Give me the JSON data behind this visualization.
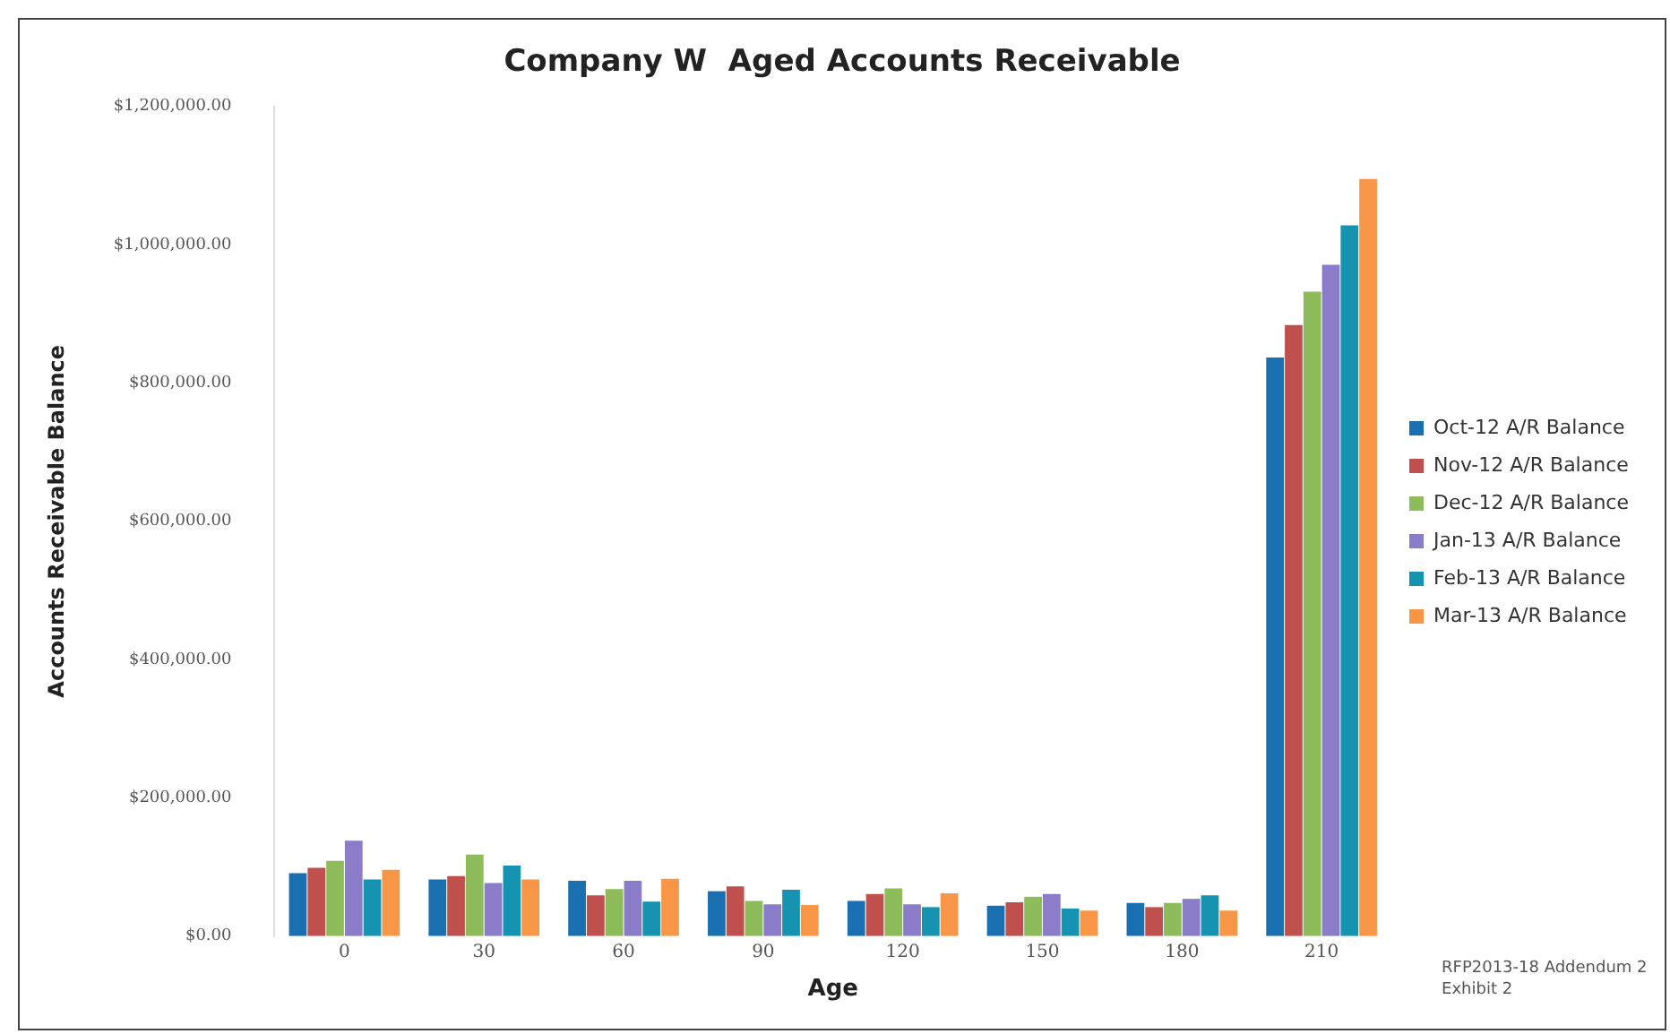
{
  "chart_data": {
    "type": "bar",
    "title": "Company W  Aged Accounts Receivable",
    "xlabel": "Age",
    "ylabel": "Accounts Receivable Balance",
    "categories": [
      "0",
      "30",
      "60",
      "90",
      "120",
      "150",
      "180",
      "210"
    ],
    "series": [
      {
        "name": "Oct-12 A/R Balance",
        "color": "#1a6fb0",
        "values": [
          91000,
          82000,
          80000,
          65000,
          51000,
          44000,
          48000,
          837000
        ]
      },
      {
        "name": "Nov-12 A/R Balance",
        "color": "#c0504d",
        "values": [
          99000,
          87000,
          59000,
          72000,
          61000,
          49000,
          42000,
          884000
        ]
      },
      {
        "name": "Dec-12 A/R Balance",
        "color": "#8fbc5a",
        "values": [
          109000,
          118000,
          68000,
          51000,
          69000,
          57000,
          48000,
          932000
        ]
      },
      {
        "name": "Jan-13 A/R Balance",
        "color": "#8a7cc8",
        "values": [
          138000,
          77000,
          80000,
          46000,
          46000,
          61000,
          54000,
          971000
        ]
      },
      {
        "name": "Feb-13 A/R Balance",
        "color": "#1593b0",
        "values": [
          82000,
          102000,
          50000,
          67000,
          42000,
          40000,
          59000,
          1028000
        ]
      },
      {
        "name": "Mar-13 A/R Balance",
        "color": "#f79646",
        "values": [
          96000,
          82000,
          83000,
          45000,
          62000,
          37000,
          37000,
          1095000
        ]
      }
    ],
    "ylim": [
      0,
      1200000
    ],
    "yticks": [
      {
        "value": 0,
        "label": "$0.00"
      },
      {
        "value": 200000,
        "label": "$200,000.00"
      },
      {
        "value": 400000,
        "label": "$400,000.00"
      },
      {
        "value": 600000,
        "label": "$600,000.00"
      },
      {
        "value": 800000,
        "label": "$800,000.00"
      },
      {
        "value": 1000000,
        "label": "$1,000,000.00"
      },
      {
        "value": 1200000,
        "label": "$1,200,000.00"
      }
    ],
    "grid": false,
    "legend": "right",
    "annotations": [
      "RFP2013-18 Addendum 2 Exhibit 2"
    ]
  }
}
